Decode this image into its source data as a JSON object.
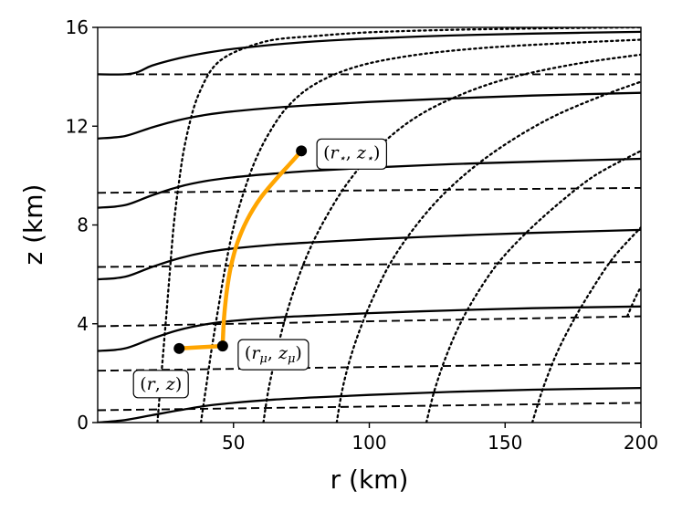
{
  "chart_data": {
    "type": "line",
    "xlabel": "r (km)",
    "ylabel": "z (km)",
    "xlim": [
      0,
      200
    ],
    "ylim": [
      0,
      16
    ],
    "xticks": [
      50,
      100,
      150,
      200
    ],
    "yticks": [
      0,
      4,
      8,
      12,
      16
    ],
    "grid": false,
    "solid_curves": [
      {
        "x": [
          0,
          10,
          20,
          30,
          40,
          50,
          65,
          80,
          100,
          130,
          160,
          200
        ],
        "y": [
          0.0,
          0.1,
          0.3,
          0.5,
          0.68,
          0.8,
          0.93,
          1.02,
          1.12,
          1.24,
          1.33,
          1.4
        ]
      },
      {
        "x": [
          0,
          10,
          20,
          30,
          40,
          50,
          65,
          80,
          100,
          130,
          160,
          200
        ],
        "y": [
          2.9,
          3.0,
          3.4,
          3.75,
          3.98,
          4.12,
          4.25,
          4.33,
          4.43,
          4.54,
          4.63,
          4.7
        ]
      },
      {
        "x": [
          0,
          10,
          20,
          30,
          40,
          50,
          65,
          80,
          100,
          130,
          160,
          200
        ],
        "y": [
          5.8,
          5.9,
          6.3,
          6.65,
          6.9,
          7.05,
          7.2,
          7.3,
          7.42,
          7.56,
          7.68,
          7.8
        ]
      },
      {
        "x": [
          0,
          10,
          20,
          30,
          40,
          50,
          65,
          80,
          100,
          130,
          160,
          200
        ],
        "y": [
          8.7,
          8.8,
          9.2,
          9.55,
          9.78,
          9.93,
          10.08,
          10.2,
          10.32,
          10.46,
          10.56,
          10.68
        ]
      },
      {
        "x": [
          0,
          10,
          20,
          30,
          40,
          50,
          65,
          80,
          100,
          130,
          160,
          200
        ],
        "y": [
          11.5,
          11.6,
          11.95,
          12.25,
          12.46,
          12.6,
          12.75,
          12.86,
          12.98,
          13.12,
          13.24,
          13.35
        ]
      },
      {
        "x": [
          0,
          10,
          15,
          20,
          30,
          40,
          50,
          65,
          80,
          100,
          130,
          160,
          200
        ],
        "y": [
          14.1,
          14.1,
          14.2,
          14.45,
          14.75,
          14.97,
          15.13,
          15.3,
          15.43,
          15.55,
          15.67,
          15.75,
          15.82
        ]
      }
    ],
    "dashed_levels": [
      0.5,
      2.1,
      3.9,
      6.3,
      9.3,
      14.1
    ],
    "dashed_right": [
      0.8,
      2.4,
      4.3,
      6.5,
      9.5,
      14.1
    ],
    "dotted_curves": [
      {
        "x": [
          22,
          23.5,
          25,
          26.5,
          28,
          30,
          32,
          35,
          38,
          42,
          47,
          55,
          65,
          80,
          100,
          130,
          170,
          200
        ],
        "y": [
          0,
          2,
          4,
          6,
          8,
          9.8,
          11.2,
          12.6,
          13.5,
          14.3,
          14.8,
          15.2,
          15.5,
          15.65,
          15.8,
          15.9,
          15.97,
          16.0
        ]
      },
      {
        "x": [
          38,
          40,
          42,
          44.5,
          47,
          50,
          54,
          58,
          63,
          70,
          80,
          95,
          115,
          140,
          170,
          200
        ],
        "y": [
          0,
          1.5,
          3,
          4.7,
          6.3,
          7.9,
          9.4,
          10.6,
          11.7,
          12.8,
          13.7,
          14.4,
          14.85,
          15.15,
          15.35,
          15.5
        ]
      },
      {
        "x": [
          61,
          63,
          66,
          69,
          73,
          78,
          84,
          92,
          102,
          115,
          130,
          150,
          175,
          200
        ],
        "y": [
          0,
          1.4,
          2.9,
          4.2,
          5.6,
          7.0,
          8.3,
          9.7,
          11.0,
          12.2,
          13.1,
          13.9,
          14.5,
          14.9
        ]
      },
      {
        "x": [
          88,
          90,
          93,
          97,
          102,
          108,
          116,
          126,
          138,
          152,
          168,
          185,
          200
        ],
        "y": [
          0,
          1.3,
          2.6,
          3.9,
          5.2,
          6.5,
          7.8,
          9.1,
          10.3,
          11.4,
          12.4,
          13.2,
          13.8
        ]
      },
      {
        "x": [
          121,
          124,
          128,
          133,
          139,
          147,
          157,
          169,
          183,
          200
        ],
        "y": [
          0,
          1.3,
          2.6,
          3.9,
          5.1,
          6.4,
          7.6,
          8.8,
          10.0,
          11.0
        ]
      },
      {
        "x": [
          160,
          164,
          169,
          175,
          182,
          190,
          200
        ],
        "y": [
          0,
          1.4,
          2.8,
          4.1,
          5.4,
          6.7,
          7.9
        ]
      },
      {
        "x": [
          195,
          197.5,
          200
        ],
        "y": [
          4.3,
          4.95,
          5.5
        ]
      }
    ],
    "highlight_path": {
      "color": "#ffa500",
      "x": [
        30,
        46,
        46.5,
        47.5,
        49,
        51.5,
        55,
        60,
        66,
        71,
        75
      ],
      "y": [
        3.0,
        3.1,
        4.2,
        5.3,
        6.3,
        7.3,
        8.2,
        9.1,
        9.9,
        10.5,
        11.0
      ]
    },
    "points": [
      {
        "x": 30,
        "y": 3.0,
        "label": "(r, z)",
        "label_pos": "below"
      },
      {
        "x": 46,
        "y": 3.1,
        "label": "(rμ, zμ)",
        "label_pos": "right"
      },
      {
        "x": 75,
        "y": 11.0,
        "label": "(r⋆, z⋆)",
        "label_pos": "right"
      }
    ]
  }
}
